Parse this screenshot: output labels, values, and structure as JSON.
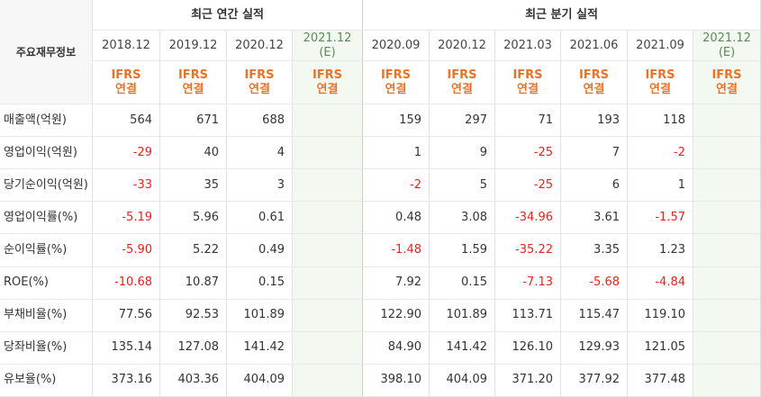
{
  "header": {
    "label": "주요재무정보",
    "groups": [
      "최근 연간 실적",
      "최근 분기 실적"
    ]
  },
  "columns": [
    {
      "period": "2018.12",
      "standard": "IFRS",
      "basis": "연결"
    },
    {
      "period": "2019.12",
      "standard": "IFRS",
      "basis": "연결"
    },
    {
      "period": "2020.12",
      "standard": "IFRS",
      "basis": "연결"
    },
    {
      "period": "2021.12",
      "estimate": "(E)",
      "standard": "IFRS",
      "basis": "연결"
    },
    {
      "period": "2020.09",
      "standard": "IFRS",
      "basis": "연결"
    },
    {
      "period": "2020.12",
      "standard": "IFRS",
      "basis": "연결"
    },
    {
      "period": "2021.03",
      "standard": "IFRS",
      "basis": "연결"
    },
    {
      "period": "2021.06",
      "standard": "IFRS",
      "basis": "연결"
    },
    {
      "period": "2021.09",
      "standard": "IFRS",
      "basis": "연결"
    },
    {
      "period": "2021.12",
      "estimate": "(E)",
      "standard": "IFRS",
      "basis": "연결"
    }
  ],
  "rows": [
    {
      "label": "매출액(억원)",
      "values": [
        "564",
        "671",
        "688",
        null,
        "159",
        "297",
        "71",
        "193",
        "118",
        null
      ]
    },
    {
      "label": "영업이익(억원)",
      "values": [
        "-29",
        "40",
        "4",
        null,
        "1",
        "9",
        "-25",
        "7",
        "-2",
        null
      ]
    },
    {
      "label": "당기순이익(억원)",
      "values": [
        "-33",
        "35",
        "3",
        null,
        "-2",
        "5",
        "-25",
        "6",
        "1",
        null
      ]
    },
    {
      "label": "영업이익률(%)",
      "values": [
        "-5.19",
        "5.96",
        "0.61",
        null,
        "0.48",
        "3.08",
        "-34.96",
        "3.61",
        "-1.57",
        null
      ]
    },
    {
      "label": "순이익률(%)",
      "values": [
        "-5.90",
        "5.22",
        "0.49",
        null,
        "-1.48",
        "1.59",
        "-35.22",
        "3.35",
        "1.23",
        null
      ]
    },
    {
      "label": "ROE(%)",
      "values": [
        "-10.68",
        "10.87",
        "0.15",
        null,
        "7.92",
        "0.15",
        "-7.13",
        "-5.68",
        "-4.84",
        null
      ]
    },
    {
      "label": "부채비율(%)",
      "values": [
        "77.56",
        "92.53",
        "101.89",
        null,
        "122.90",
        "101.89",
        "113.71",
        "115.47",
        "119.10",
        null
      ]
    },
    {
      "label": "당좌비율(%)",
      "values": [
        "135.14",
        "127.08",
        "141.42",
        null,
        "84.90",
        "141.42",
        "126.10",
        "129.93",
        "121.05",
        null
      ]
    },
    {
      "label": "유보율(%)",
      "values": [
        "373.16",
        "403.36",
        "404.09",
        null,
        "398.10",
        "404.09",
        "371.20",
        "377.92",
        "377.48",
        null
      ]
    }
  ]
}
